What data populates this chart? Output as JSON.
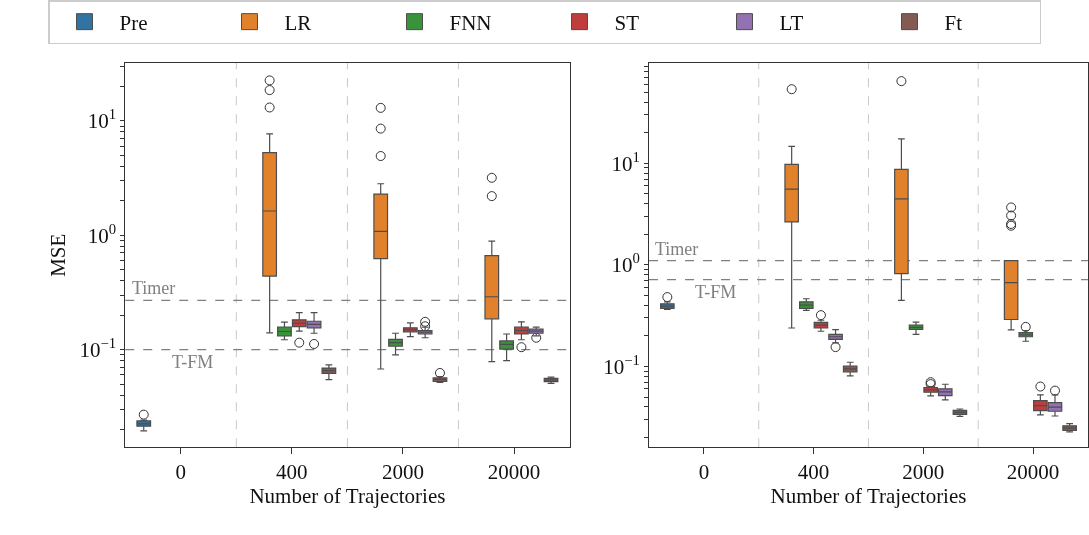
{
  "chart_data": [
    {
      "type": "box",
      "xlabel": "Number of Trajectories",
      "ylabel": "MSE",
      "categories": [
        "0",
        "400",
        "2000",
        "20000"
      ],
      "log": true,
      "ylim": [
        0.014,
        32
      ],
      "legend": "top",
      "yticks": [
        {
          "value": 0.02,
          "label": null
        },
        {
          "value": 0.03,
          "label": null
        },
        {
          "value": 0.04,
          "label": null
        },
        {
          "value": 0.05,
          "label": null
        },
        {
          "value": 0.06,
          "label": null
        },
        {
          "value": 0.07,
          "label": null
        },
        {
          "value": 0.08,
          "label": null
        },
        {
          "value": 0.09,
          "label": null
        },
        {
          "value": 0.1,
          "label": "10$^{−1}$"
        },
        {
          "value": 0.2,
          "label": null
        },
        {
          "value": 0.3,
          "label": null
        },
        {
          "value": 0.4,
          "label": null
        },
        {
          "value": 0.5,
          "label": null
        },
        {
          "value": 0.6,
          "label": null
        },
        {
          "value": 0.7,
          "label": null
        },
        {
          "value": 0.8,
          "label": null
        },
        {
          "value": 0.9,
          "label": null
        },
        {
          "value": 1,
          "label": "10$^{0}$"
        },
        {
          "value": 2,
          "label": null
        },
        {
          "value": 3,
          "label": null
        },
        {
          "value": 4,
          "label": null
        },
        {
          "value": 5,
          "label": null
        },
        {
          "value": 6,
          "label": null
        },
        {
          "value": 7,
          "label": null
        },
        {
          "value": 8,
          "label": null
        },
        {
          "value": 9,
          "label": null
        },
        {
          "value": 10,
          "label": "10$^{1}$"
        },
        {
          "value": 20,
          "label": null
        },
        {
          "value": 30,
          "label": null
        }
      ],
      "ref_lines": [
        {
          "axis": "y",
          "value": 0.269,
          "label": "Timer",
          "color": "#808080",
          "line_style": "dashed"
        },
        {
          "axis": "y",
          "value": 0.1,
          "label": "T-FM",
          "color": "#808080",
          "line_style": "dashed"
        }
      ],
      "series": [
        {
          "name": "Pre",
          "color": "#3274a1",
          "boxes": [
            {
              "low": 0.0195,
              "q1": 0.0214,
              "median": 0.0224,
              "q3": 0.0238,
              "high": 0.0242,
              "outliers": [
                0.027
              ]
            },
            null,
            null,
            null
          ]
        },
        {
          "name": "LR",
          "color": "#e1812c",
          "boxes": [
            null,
            {
              "low": 0.14,
              "q1": 0.44,
              "median": 1.63,
              "q3": 5.27,
              "high": 7.7,
              "outliers": [
                22.6,
                18.6,
                13.1
              ]
            },
            {
              "low": 0.0677,
              "q1": 0.625,
              "median": 1.08,
              "q3": 2.29,
              "high": 2.82,
              "outliers": [
                13.0,
                8.56,
                4.93
              ]
            },
            {
              "low": 0.0785,
              "q1": 0.186,
              "median": 0.29,
              "q3": 0.664,
              "high": 0.89,
              "outliers": [
                3.18,
                2.2
              ]
            }
          ]
        },
        {
          "name": "FNN",
          "color": "#3a923a",
          "boxes": [
            null,
            {
              "low": 0.122,
              "q1": 0.132,
              "median": 0.144,
              "q3": 0.157,
              "high": 0.174
            },
            {
              "low": 0.09,
              "q1": 0.107,
              "median": 0.115,
              "q3": 0.123,
              "high": 0.139
            },
            {
              "low": 0.08,
              "q1": 0.101,
              "median": 0.111,
              "q3": 0.119,
              "high": 0.137
            }
          ]
        },
        {
          "name": "ST",
          "color": "#c03d3e",
          "boxes": [
            null,
            {
              "low": 0.145,
              "q1": 0.159,
              "median": 0.17,
              "q3": 0.182,
              "high": 0.211,
              "outliers": [
                0.115
              ]
            },
            {
              "low": 0.13,
              "q1": 0.143,
              "median": 0.149,
              "q3": 0.155,
              "high": 0.171
            },
            {
              "low": 0.122,
              "q1": 0.137,
              "median": 0.147,
              "q3": 0.157,
              "high": 0.175,
              "outliers": [
                0.105
              ]
            }
          ]
        },
        {
          "name": "LT",
          "color": "#9372b2",
          "boxes": [
            null,
            {
              "low": 0.139,
              "q1": 0.155,
              "median": 0.166,
              "q3": 0.177,
              "high": 0.211,
              "outliers": [
                0.112
              ]
            },
            {
              "low": 0.127,
              "q1": 0.137,
              "median": 0.142,
              "q3": 0.147,
              "high": 0.157,
              "outliers": [
                0.175,
                0.16
              ]
            },
            {
              "low": 0.132,
              "q1": 0.139,
              "median": 0.145,
              "q3": 0.151,
              "high": 0.157,
              "outliers": [
                0.127
              ]
            }
          ]
        },
        {
          "name": "Ft",
          "color": "#845b53",
          "boxes": [
            null,
            {
              "low": 0.0546,
              "q1": 0.062,
              "median": 0.0654,
              "q3": 0.069,
              "high": 0.0734
            },
            {
              "low": 0.0516,
              "q1": 0.0527,
              "median": 0.055,
              "q3": 0.0565,
              "high": 0.058,
              "outliers": [
                0.0625
              ]
            },
            {
              "low": 0.0506,
              "q1": 0.0524,
              "median": 0.0542,
              "q3": 0.056,
              "high": 0.0574
            }
          ]
        }
      ]
    },
    {
      "type": "box",
      "xlabel": "Number of Trajectories",
      "categories": [
        "0",
        "400",
        "2000",
        "20000"
      ],
      "log": true,
      "ylim": [
        0.016,
        97
      ],
      "yticks": [
        {
          "value": 0.02,
          "label": null
        },
        {
          "value": 0.03,
          "label": null
        },
        {
          "value": 0.04,
          "label": null
        },
        {
          "value": 0.05,
          "label": null
        },
        {
          "value": 0.06,
          "label": null
        },
        {
          "value": 0.07,
          "label": null
        },
        {
          "value": 0.08,
          "label": null
        },
        {
          "value": 0.09,
          "label": null
        },
        {
          "value": 0.1,
          "label": "10$^{−1}$"
        },
        {
          "value": 0.2,
          "label": null
        },
        {
          "value": 0.3,
          "label": null
        },
        {
          "value": 0.4,
          "label": null
        },
        {
          "value": 0.5,
          "label": null
        },
        {
          "value": 0.6,
          "label": null
        },
        {
          "value": 0.7,
          "label": null
        },
        {
          "value": 0.8,
          "label": null
        },
        {
          "value": 0.9,
          "label": null
        },
        {
          "value": 1,
          "label": "10$^{0}$"
        },
        {
          "value": 2,
          "label": null
        },
        {
          "value": 3,
          "label": null
        },
        {
          "value": 4,
          "label": null
        },
        {
          "value": 5,
          "label": null
        },
        {
          "value": 6,
          "label": null
        },
        {
          "value": 7,
          "label": null
        },
        {
          "value": 8,
          "label": null
        },
        {
          "value": 9,
          "label": null
        },
        {
          "value": 10,
          "label": "10$^{1}$"
        },
        {
          "value": 20,
          "label": null
        },
        {
          "value": 30,
          "label": null
        },
        {
          "value": 40,
          "label": null
        },
        {
          "value": 50,
          "label": null
        },
        {
          "value": 60,
          "label": null
        },
        {
          "value": 70,
          "label": null
        },
        {
          "value": 80,
          "label": null
        },
        {
          "value": 90,
          "label": null
        }
      ],
      "ref_lines": [
        {
          "axis": "y",
          "value": 1.1,
          "label": "Timer",
          "color": "#808080",
          "line_style": "dashed"
        },
        {
          "axis": "y",
          "value": 0.716,
          "label": "T-FM",
          "color": "#808080",
          "line_style": "dashed"
        }
      ],
      "series": [
        {
          "color": "#3274a1",
          "boxes": [
            {
              "low": 0.364,
              "q1": 0.373,
              "median": 0.393,
              "q3": 0.414,
              "high": 0.433,
              "outliers": [
                0.482
              ]
            },
            null,
            null,
            null
          ]
        },
        {
          "color": "#e1812c",
          "boxes": [
            null,
            {
              "low": 0.239,
              "q1": 2.65,
              "median": 5.57,
              "q3": 9.77,
              "high": 14.7,
              "outliers": [
                53.7
              ]
            },
            {
              "low": 0.448,
              "q1": 0.82,
              "median": 4.47,
              "q3": 8.73,
              "high": 17.4,
              "outliers": [
                64.5
              ]
            },
            {
              "low": 0.229,
              "q1": 0.29,
              "median": 0.668,
              "q3": 1.1,
              "high": 1.1,
              "outliers": [
                3.68,
                3.06,
                2.53,
                2.43
              ]
            }
          ]
        },
        {
          "color": "#3a923a",
          "boxes": [
            null,
            {
              "low": 0.356,
              "q1": 0.373,
              "median": 0.402,
              "q3": 0.433,
              "high": 0.464
            },
            {
              "low": 0.207,
              "q1": 0.232,
              "median": 0.243,
              "q3": 0.255,
              "high": 0.273
            },
            {
              "low": 0.177,
              "q1": 0.196,
              "median": 0.205,
              "q3": 0.215,
              "high": 0.226,
              "outliers": [
                0.245
              ]
            }
          ]
        },
        {
          "color": "#c03d3e",
          "boxes": [
            null,
            {
              "low": 0.222,
              "q1": 0.239,
              "median": 0.255,
              "q3": 0.271,
              "high": 0.285,
              "outliers": [
                0.32
              ]
            },
            {
              "low": 0.0513,
              "q1": 0.0557,
              "median": 0.0588,
              "q3": 0.062,
              "high": 0.0634,
              "outliers": [
                0.07,
                0.067
              ]
            },
            {
              "low": 0.0333,
              "q1": 0.0367,
              "median": 0.0411,
              "q3": 0.0461,
              "high": 0.0525,
              "outliers": [
                0.0634
              ]
            }
          ]
        },
        {
          "color": "#9372b2",
          "boxes": [
            null,
            {
              "low": 0.171,
              "q1": 0.185,
              "median": 0.196,
              "q3": 0.207,
              "high": 0.23,
              "outliers": [
                0.155
              ]
            },
            {
              "low": 0.0468,
              "q1": 0.0516,
              "median": 0.0562,
              "q3": 0.0602,
              "high": 0.0668
            },
            {
              "low": 0.0325,
              "q1": 0.0362,
              "median": 0.0398,
              "q3": 0.044,
              "high": 0.0525,
              "outliers": [
                0.0578
              ]
            }
          ]
        },
        {
          "color": "#845b53",
          "boxes": [
            null,
            {
              "low": 0.0807,
              "q1": 0.0885,
              "median": 0.0946,
              "q3": 0.101,
              "high": 0.11
            },
            {
              "low": 0.0322,
              "q1": 0.0337,
              "median": 0.0353,
              "q3": 0.0369,
              "high": 0.0381
            },
            {
              "low": 0.0227,
              "q1": 0.0234,
              "median": 0.0247,
              "q3": 0.026,
              "high": 0.0273
            }
          ]
        }
      ]
    }
  ]
}
